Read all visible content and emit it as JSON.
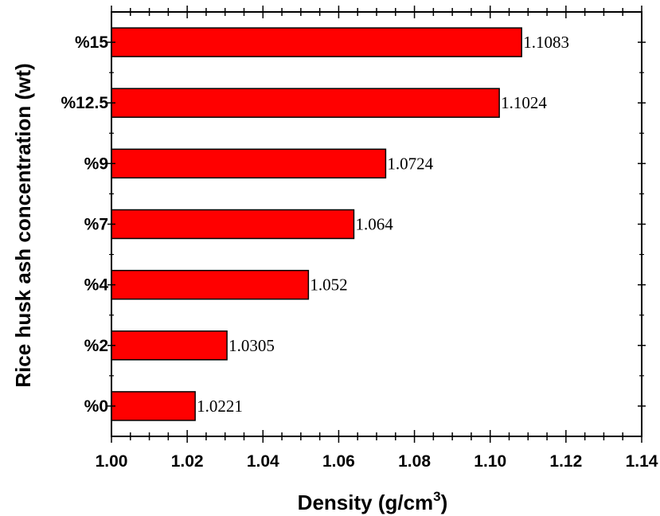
{
  "chart_data": {
    "type": "bar",
    "orientation": "horizontal",
    "categories": [
      "%0",
      "%2",
      "%4",
      "%7",
      "%9",
      "%12.5",
      "%15"
    ],
    "values": [
      1.0221,
      1.0305,
      1.052,
      1.064,
      1.0724,
      1.1024,
      1.1083
    ],
    "data_labels": [
      "1.0221",
      "1.0305",
      "1.052",
      "1.064",
      "1.0724",
      "1.1024",
      "1.1083"
    ],
    "xlabel": "Density (g/cm",
    "xlabel_superscript": "3",
    "xlabel_suffix": ")",
    "ylabel": "Rice husk ash concentration (wt)",
    "xlim": [
      1.0,
      1.14
    ],
    "x_ticks": [
      "1.00",
      "1.02",
      "1.04",
      "1.06",
      "1.08",
      "1.10",
      "1.12",
      "1.14"
    ],
    "bar_color": "#ff0000",
    "grid": false,
    "legend": "none"
  }
}
